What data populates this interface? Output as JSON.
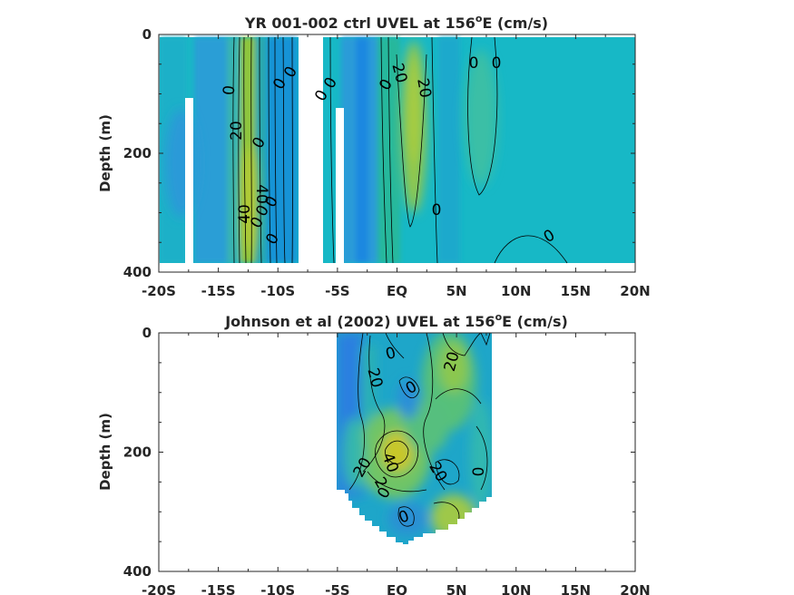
{
  "chart_data": [
    {
      "type": "heatmap",
      "title_main": "YR 001-002 ctrl UVEL at 156",
      "title_sup": "o",
      "title_tail": "E (cm/s)",
      "ylabel": "Depth (m)",
      "xlim": [
        -20,
        20
      ],
      "ylim": [
        0,
        400
      ],
      "y_reversed": true,
      "xtick_labels": [
        "-20S",
        "-15S",
        "-10S",
        "-5S",
        "EQ",
        "5N",
        "10N",
        "15N",
        "20N"
      ],
      "xtick_values": [
        -20,
        -15,
        -10,
        -5,
        0,
        5,
        10,
        15,
        20
      ],
      "ytick_labels": [
        "0",
        "200",
        "400"
      ],
      "ytick_values": [
        0,
        200,
        400
      ],
      "colorscale": "parula",
      "clim": [
        -60,
        60
      ],
      "data_extent": {
        "lat": [
          -20,
          20
        ],
        "depth": [
          5,
          385
        ]
      },
      "core_max_values": [
        {
          "lat": -12,
          "depth": 230,
          "value": 45
        },
        {
          "lat": 1.5,
          "depth": 150,
          "value": 33
        }
      ],
      "gaps": [
        {
          "lat": [
            -17.8,
            -17.0
          ],
          "depth": [
            105,
            385
          ]
        },
        {
          "lat": [
            -7.6,
            -5.8
          ],
          "depth": [
            0,
            385
          ]
        },
        {
          "lat": [
            -5.1,
            -4.5
          ],
          "depth": [
            120,
            385
          ]
        }
      ],
      "contour_labels": [
        "0",
        "0",
        "0",
        "0",
        "0",
        "20",
        "0",
        "40",
        "0",
        "40",
        "0",
        "0",
        "0",
        "20",
        "0",
        "20",
        "0",
        "0",
        "0",
        "0"
      ]
    },
    {
      "type": "heatmap",
      "title_main": "Johnson et al (2002) UVEL at 156",
      "title_sup": "o",
      "title_tail": "E (cm/s)",
      "ylabel": "Depth (m)",
      "xlim": [
        -20,
        20
      ],
      "ylim": [
        0,
        400
      ],
      "y_reversed": true,
      "xtick_labels": [
        "-20S",
        "-15S",
        "-10S",
        "-5S",
        "EQ",
        "5N",
        "10N",
        "15N",
        "20N"
      ],
      "xtick_values": [
        -20,
        -15,
        -10,
        -5,
        0,
        5,
        10,
        15,
        20
      ],
      "ytick_labels": [
        "0",
        "200",
        "400"
      ],
      "ytick_values": [
        0,
        200,
        400
      ],
      "colorscale": "parula",
      "clim": [
        -60,
        60
      ],
      "data_extent": {
        "lat": [
          -5,
          8
        ],
        "depth": [
          0,
          350
        ]
      },
      "core_max_values": [
        {
          "lat": 0.3,
          "depth": 200,
          "value": 45
        },
        {
          "lat": 4.5,
          "depth": 80,
          "value": 25
        }
      ],
      "contour_labels": [
        "0",
        "20",
        "0",
        "20",
        "20",
        "40",
        "2",
        "0",
        "20",
        "0",
        "0"
      ]
    }
  ]
}
